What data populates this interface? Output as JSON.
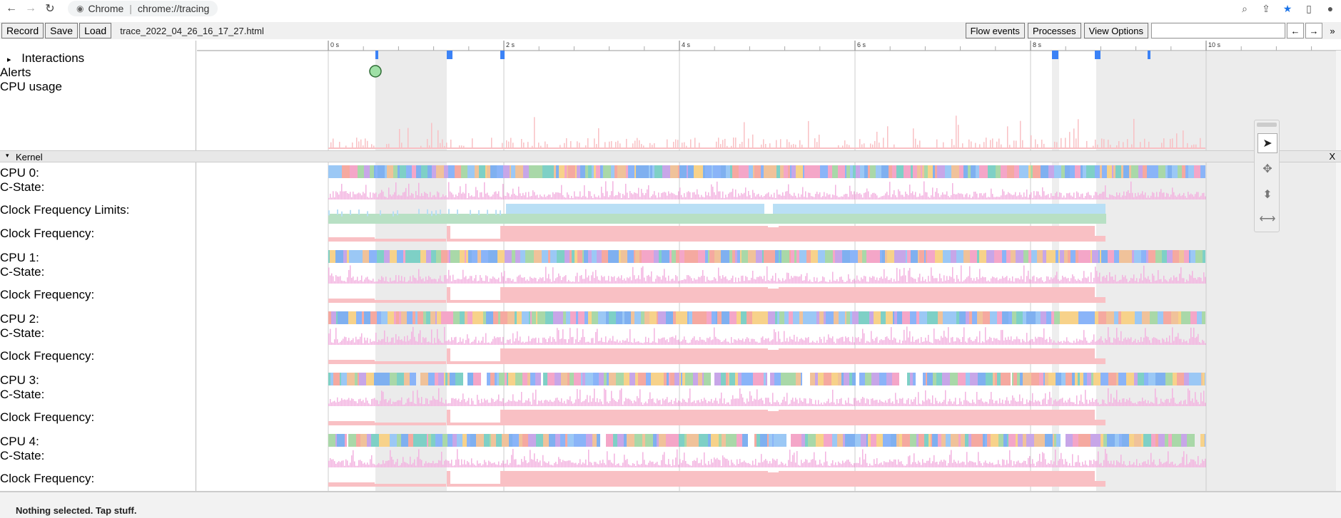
{
  "browser": {
    "app_name": "Chrome",
    "url": "chrome://tracing"
  },
  "toolbar": {
    "record_label": "Record",
    "save_label": "Save",
    "load_label": "Load",
    "filename": "trace_2022_04_26_16_17_27.html",
    "flow_events_label": "Flow events",
    "processes_label": "Processes",
    "view_options_label": "View Options",
    "prev_label": "←",
    "next_label": "→",
    "more_label": "»"
  },
  "timeline": {
    "ticks": [
      "0 s",
      "2 s",
      "4 s",
      "6 s",
      "8 s",
      "10 s"
    ]
  },
  "tracks": {
    "interactions": "Interactions",
    "alerts": "Alerts",
    "cpu_usage": "CPU usage",
    "kernel": "Kernel",
    "kernel_close": "X",
    "cpu0": "CPU 0:",
    "cstate0": "C-State:",
    "clock_limits": "Clock Frequency Limits:",
    "clock0": "Clock Frequency:",
    "cpu1": "CPU 1:",
    "cstate1": "C-State:",
    "clock1": "Clock Frequency:",
    "cpu2": "CPU 2:",
    "cstate2": "C-State:",
    "clock2": "Clock Frequency:",
    "cpu3": "CPU 3:",
    "cstate3": "C-State:",
    "clock3": "Clock Frequency:",
    "cpu4": "CPU 4:",
    "cstate4": "C-State:",
    "clock4": "Clock Frequency:"
  },
  "status": {
    "text": "Nothing selected. Tap stuff."
  },
  "colors": {
    "cpu_palette": [
      "#8ab4f8",
      "#7fb0f0",
      "#9bc8f5",
      "#f4a6c8",
      "#f5a9a0",
      "#a9d8a8",
      "#f0c29a",
      "#c7a6e8",
      "#f7d28a",
      "#7ed0c6"
    ],
    "cstate": "#f3b3e0",
    "clock": "#f9c0c4",
    "cpu_usage": "#f9c0c4",
    "limit_blue": "#b9dff5",
    "limit_green": "#b8e0c4",
    "selection": "#dddddd",
    "marker_blue": "#3b82f6"
  }
}
